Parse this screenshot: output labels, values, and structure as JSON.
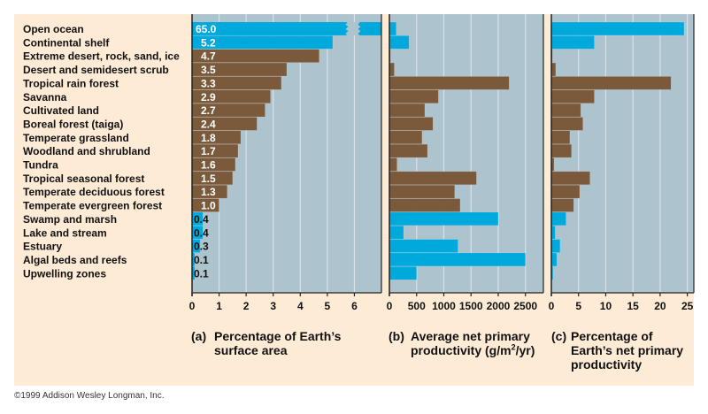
{
  "colors": {
    "page_background": "#FDEBD6",
    "plot_background": "#ADC3CE",
    "gridline": "#D8E3E9",
    "aquatic": "#00A9DB",
    "terrestrial": "#7B5A3C",
    "axis": "#222222",
    "value_text_on_bar": "#ffffff",
    "value_text_off_bar": "#111111"
  },
  "chart_data": {
    "type": "bar",
    "orientation": "horizontal",
    "categories": [
      "Open ocean",
      "Continental shelf",
      "Extreme desert, rock, sand, ice",
      "Desert and semidesert scrub",
      "Tropical rain forest",
      "Savanna",
      "Cultivated land",
      "Boreal forest (taiga)",
      "Temperate grassland",
      "Woodland and shrubland",
      "Tundra",
      "Tropical seasonal forest",
      "Temperate deciduous forest",
      "Temperate evergreen forest",
      "Swamp and marsh",
      "Lake and stream",
      "Estuary",
      "Algal beds and reefs",
      "Upwelling zones"
    ],
    "ecosystem_type": [
      "aquatic",
      "aquatic",
      "terrestrial",
      "terrestrial",
      "terrestrial",
      "terrestrial",
      "terrestrial",
      "terrestrial",
      "terrestrial",
      "terrestrial",
      "terrestrial",
      "terrestrial",
      "terrestrial",
      "terrestrial",
      "aquatic",
      "aquatic",
      "aquatic",
      "aquatic",
      "aquatic"
    ],
    "panels": [
      {
        "id": "a",
        "tag": "(a)",
        "title": "Percentage of Earth’s surface area",
        "title_lines": [
          "Percentage of Earth’s",
          "surface area"
        ],
        "xlim": [
          0,
          7
        ],
        "ticks": [
          0,
          1,
          2,
          3,
          4,
          5,
          6
        ],
        "grid": true,
        "values": [
          65.0,
          5.2,
          4.7,
          3.5,
          3.3,
          2.9,
          2.7,
          2.4,
          1.8,
          1.7,
          1.6,
          1.5,
          1.3,
          1.0,
          0.4,
          0.4,
          0.3,
          0.1,
          0.1
        ],
        "value_labels": [
          "65.0",
          "5.2",
          "4.7",
          "3.5",
          "3.3",
          "2.9",
          "2.7",
          "2.4",
          "1.8",
          "1.7",
          "1.6",
          "1.5",
          "1.3",
          "1.0",
          "0.4",
          "0.4",
          "0.3",
          "0.1",
          "0.1"
        ],
        "broken_bar_index": 0
      },
      {
        "id": "b",
        "tag": "(b)",
        "title": "Average net primary productivity (g/m2/yr)",
        "title_lines": [
          "Average net primary",
          "productivity (g/m",
          "2",
          "/yr)"
        ],
        "xlim": [
          0,
          2830
        ],
        "ticks": [
          0,
          500,
          1000,
          1500,
          2000,
          2500
        ],
        "grid": true,
        "values": [
          125,
          360,
          3,
          90,
          2200,
          900,
          650,
          800,
          600,
          700,
          140,
          1600,
          1200,
          1300,
          2000,
          260,
          1260,
          2500,
          500
        ]
      },
      {
        "id": "c",
        "tag": "(c)",
        "title": "Percentage of Earth’s net primary productivity",
        "title_lines": [
          "Percentage of",
          "Earth’s net primary",
          "productivity"
        ],
        "xlim": [
          0,
          26.2
        ],
        "ticks": [
          0,
          5,
          10,
          15,
          20,
          25
        ],
        "grid": true,
        "values": [
          24.4,
          7.9,
          0.2,
          0.8,
          22.0,
          7.9,
          5.4,
          5.8,
          3.4,
          3.7,
          0.5,
          7.1,
          5.2,
          4.1,
          2.7,
          0.7,
          1.6,
          1.0,
          0.3
        ]
      }
    ]
  },
  "footer": {
    "copyright": "©1999 Addison Wesley Longman, Inc."
  }
}
